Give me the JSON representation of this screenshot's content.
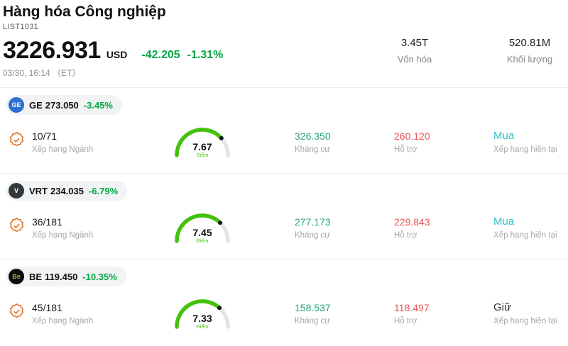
{
  "header": {
    "title": "Hàng hóa Công nghiệp",
    "list_id": "LIST1031",
    "price": "3226.931",
    "currency": "USD",
    "change_value": "-42.205",
    "change_percent": "-1.31%",
    "timestamp": "03/30, 16:14 （ET）",
    "market_cap_value": "3.45T",
    "market_cap_label": "Vốn hóa",
    "volume_value": "520.81M",
    "volume_label": "Khối lượng"
  },
  "labels": {
    "industry_rank": "Xếp hạng Ngành",
    "score": "Điểm",
    "resistance": "Kháng cự",
    "support": "Hỗ trợ",
    "current_rating": "Xếp hạng hiện tại"
  },
  "colors": {
    "up_green": "#00a843",
    "resistance_teal": "#29a679",
    "support_red": "#ea5455",
    "rating_buy": "#2fc0cd",
    "rating_hold": "#333333",
    "gauge_green": "#43c20a",
    "badge_icon_orange": "#df7a32"
  },
  "stocks": [
    {
      "ticker": "GE",
      "price": "273.050",
      "change": "-3.45%",
      "logo_text": "GE",
      "logo_bg": "#2e6fd0",
      "logo_fg": "#ffffff",
      "rank": "10/71",
      "score": 7.67,
      "resistance": "326.350",
      "support": "260.120",
      "rating": "Mua",
      "rating_color": "#2fc0cd"
    },
    {
      "ticker": "VRT",
      "price": "234.035",
      "change": "-6.79%",
      "logo_text": "V",
      "logo_bg": "#33383c",
      "logo_fg": "#ffffff",
      "rank": "36/181",
      "score": 7.45,
      "resistance": "277.173",
      "support": "229.843",
      "rating": "Mua",
      "rating_color": "#2fc0cd"
    },
    {
      "ticker": "BE",
      "price": "119.450",
      "change": "-10.35%",
      "logo_text": "Be",
      "logo_bg": "#0c0c0c",
      "logo_fg": "#8bc53f",
      "rank": "45/181",
      "score": 7.33,
      "resistance": "158.537",
      "support": "118.497",
      "rating": "Giữ",
      "rating_color": "#333333"
    }
  ]
}
